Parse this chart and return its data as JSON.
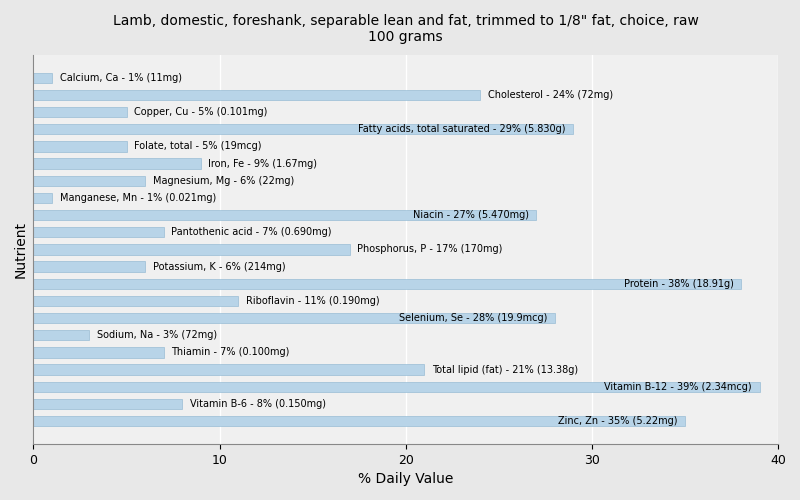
{
  "title": "Lamb, domestic, foreshank, separable lean and fat, trimmed to 1/8\" fat, choice, raw\n100 grams",
  "xlabel": "% Daily Value",
  "ylabel": "Nutrient",
  "xlim": [
    0,
    40
  ],
  "bar_color": "#b8d4e8",
  "bar_edge_color": "#8ab4d0",
  "background_color": "#e8e8e8",
  "plot_background": "#f0f0f0",
  "figsize": [
    8.0,
    5.0
  ],
  "dpi": 100,
  "nutrients": [
    {
      "label": "Calcium, Ca - 1% (11mg)",
      "value": 1
    },
    {
      "label": "Cholesterol - 24% (72mg)",
      "value": 24
    },
    {
      "label": "Copper, Cu - 5% (0.101mg)",
      "value": 5
    },
    {
      "label": "Fatty acids, total saturated - 29% (5.830g)",
      "value": 29
    },
    {
      "label": "Folate, total - 5% (19mcg)",
      "value": 5
    },
    {
      "label": "Iron, Fe - 9% (1.67mg)",
      "value": 9
    },
    {
      "label": "Magnesium, Mg - 6% (22mg)",
      "value": 6
    },
    {
      "label": "Manganese, Mn - 1% (0.021mg)",
      "value": 1
    },
    {
      "label": "Niacin - 27% (5.470mg)",
      "value": 27
    },
    {
      "label": "Pantothenic acid - 7% (0.690mg)",
      "value": 7
    },
    {
      "label": "Phosphorus, P - 17% (170mg)",
      "value": 17
    },
    {
      "label": "Potassium, K - 6% (214mg)",
      "value": 6
    },
    {
      "label": "Protein - 38% (18.91g)",
      "value": 38
    },
    {
      "label": "Riboflavin - 11% (0.190mg)",
      "value": 11
    },
    {
      "label": "Selenium, Se - 28% (19.9mcg)",
      "value": 28
    },
    {
      "label": "Sodium, Na - 3% (72mg)",
      "value": 3
    },
    {
      "label": "Thiamin - 7% (0.100mg)",
      "value": 7
    },
    {
      "label": "Total lipid (fat) - 21% (13.38g)",
      "value": 21
    },
    {
      "label": "Vitamin B-12 - 39% (2.34mcg)",
      "value": 39
    },
    {
      "label": "Vitamin B-6 - 8% (0.150mg)",
      "value": 8
    },
    {
      "label": "Zinc, Zn - 35% (5.22mg)",
      "value": 35
    }
  ],
  "label_fontsize": 7,
  "bar_height": 0.6,
  "text_threshold": 25,
  "tick_fontsize": 9,
  "title_fontsize": 10,
  "axis_label_fontsize": 10
}
